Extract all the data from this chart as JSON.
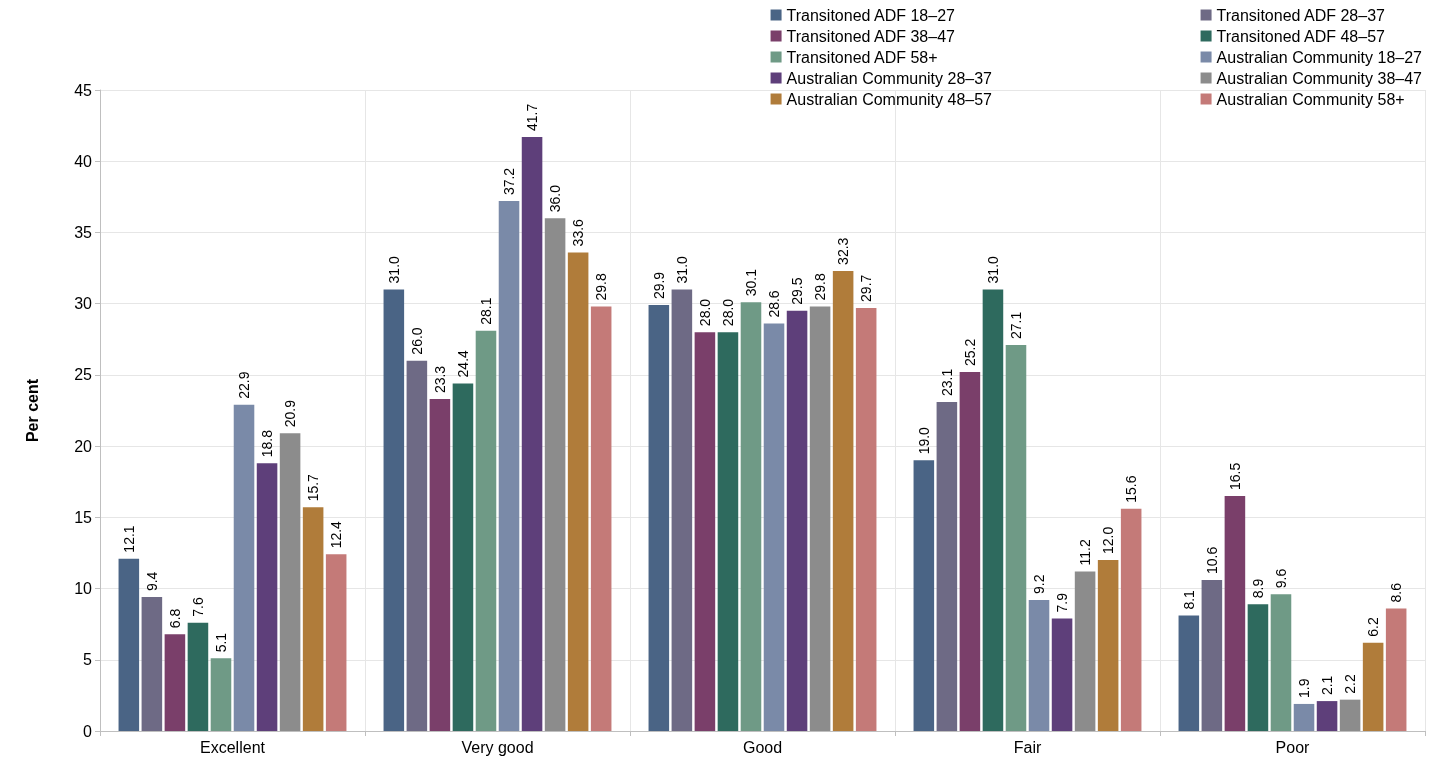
{
  "chart_data": {
    "type": "bar",
    "ylabel": "Per cent",
    "categories": [
      "Excellent",
      "Very good",
      "Good",
      "Fair",
      "Poor"
    ],
    "ylim": [
      0,
      45
    ],
    "yticks": [
      0,
      5,
      10,
      15,
      20,
      25,
      30,
      35,
      40,
      45
    ],
    "grid": true,
    "legend": "top right",
    "series": [
      {
        "name": "Transitoned ADF 18–27",
        "color": "#4a6485",
        "values": [
          12.1,
          31.0,
          29.9,
          19.0,
          8.1
        ],
        "value_labels": [
          "12.1",
          "31.0",
          "29.9",
          "19.0",
          "8.1"
        ]
      },
      {
        "name": "Transitoned ADF 28–37",
        "color": "#6e6a85",
        "values": [
          9.4,
          26.0,
          31.0,
          23.1,
          10.6
        ],
        "value_labels": [
          "9.4",
          "26.0",
          "31.0",
          "23.1",
          "10.6"
        ]
      },
      {
        "name": "Transitoned ADF 38–47",
        "color": "#7a3f6a",
        "values": [
          6.8,
          23.3,
          28.0,
          25.2,
          16.5
        ],
        "value_labels": [
          "6.8",
          "23.3",
          "28.0",
          "25.2",
          "16.5"
        ]
      },
      {
        "name": "Transitoned ADF 48–57",
        "color": "#2e6a5e",
        "values": [
          7.6,
          24.4,
          28.0,
          31.0,
          8.9
        ],
        "value_labels": [
          "7.6",
          "24.4",
          "28.0",
          "31.0",
          "8.9"
        ]
      },
      {
        "name": "Transitoned ADF 58+",
        "color": "#6f9a86",
        "values": [
          5.1,
          28.1,
          30.1,
          27.1,
          9.6
        ],
        "value_labels": [
          "5.1",
          "28.1",
          "30.1",
          "27.1",
          "9.6"
        ]
      },
      {
        "name": "Australian Community 18–27",
        "color": "#7a8aa8",
        "values": [
          22.9,
          37.2,
          28.6,
          9.2,
          1.9
        ],
        "value_labels": [
          "22.9",
          "37.2",
          "28.6",
          "9.2",
          "1.9"
        ]
      },
      {
        "name": "Australian Community 28–37",
        "color": "#5e3f7a",
        "values": [
          18.8,
          41.7,
          29.5,
          7.9,
          2.1
        ],
        "value_labels": [
          "18.8",
          "41.7",
          "29.5",
          "7.9",
          "2.1"
        ]
      },
      {
        "name": "Australian Community 38–47",
        "color": "#8c8c8c",
        "values": [
          20.9,
          36.0,
          29.8,
          11.2,
          2.2
        ],
        "value_labels": [
          "20.9",
          "36.0",
          "29.8",
          "11.2",
          "2.2"
        ]
      },
      {
        "name": "Australian Community 48–57",
        "color": "#b07c3a",
        "values": [
          15.7,
          33.6,
          32.3,
          12.0,
          6.2
        ],
        "value_labels": [
          "15.7",
          "33.6",
          "32.3",
          "12.0",
          "6.2"
        ]
      },
      {
        "name": "Australian Community 58+",
        "color": "#c47a78",
        "values": [
          12.4,
          29.8,
          29.7,
          15.6,
          8.6
        ],
        "value_labels": [
          "12.4",
          "29.8",
          "29.7",
          "15.6",
          "8.6"
        ]
      }
    ]
  }
}
